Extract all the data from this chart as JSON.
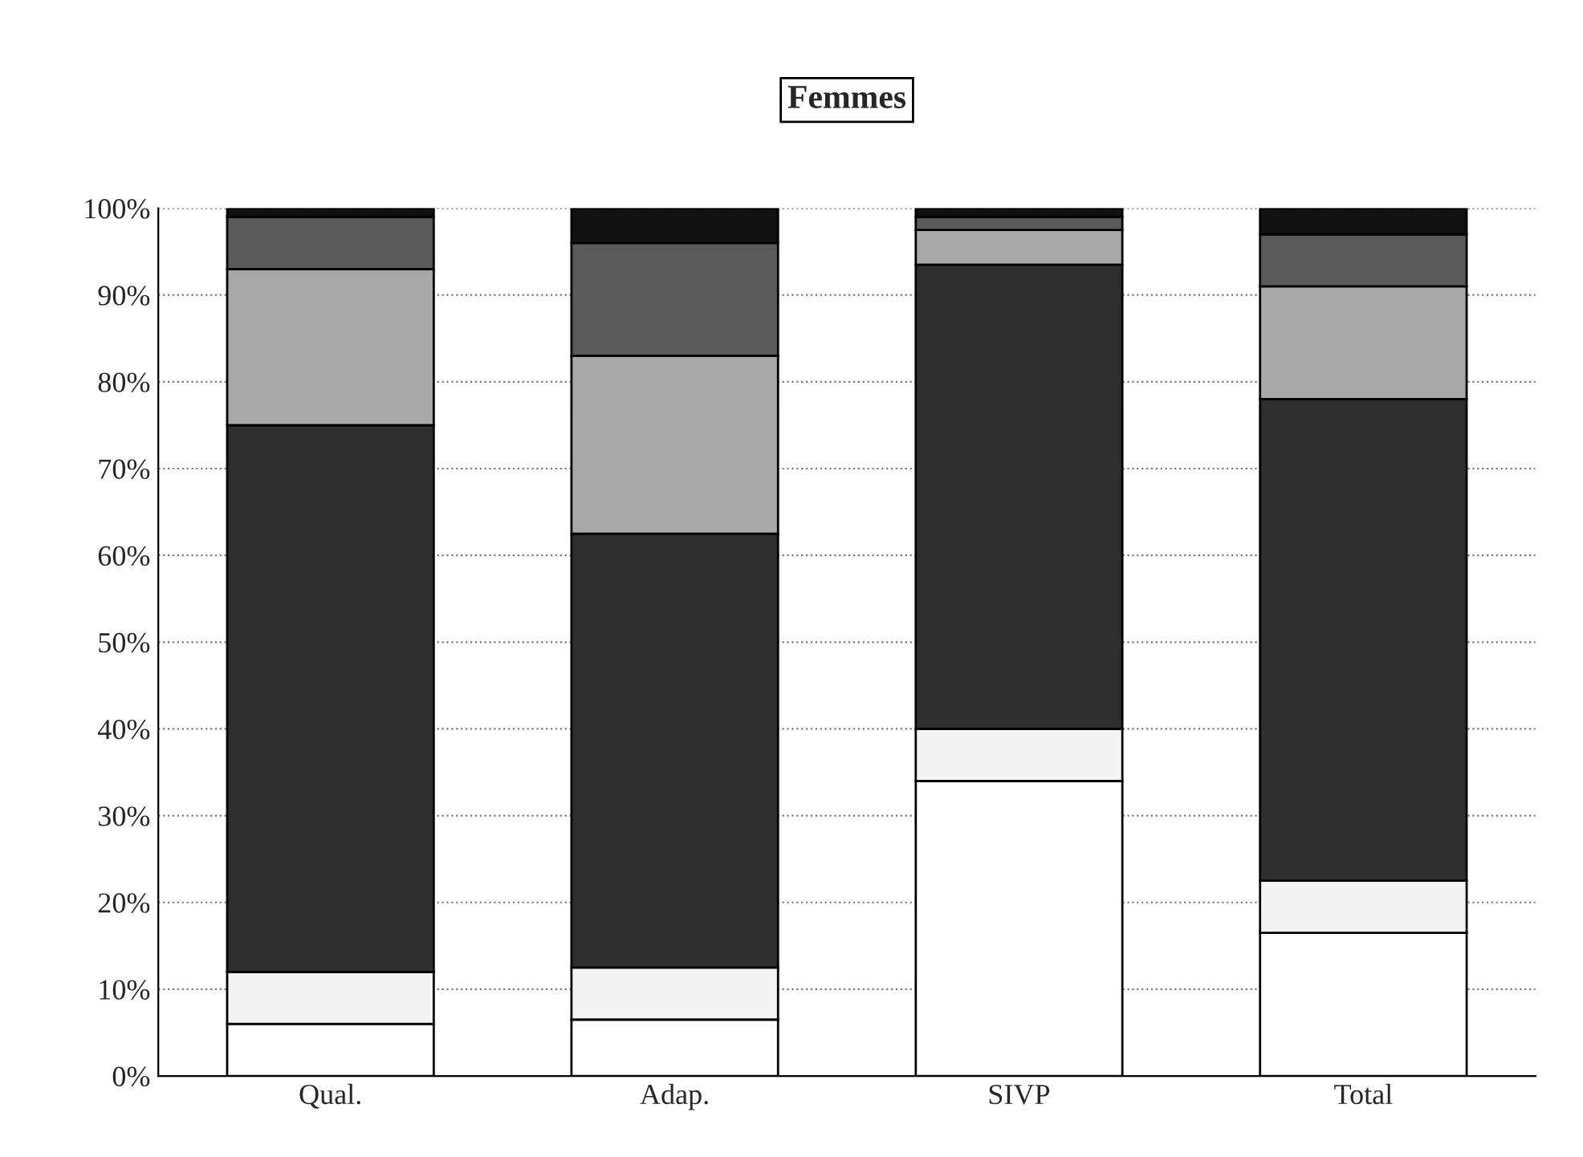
{
  "chart_data": {
    "type": "bar",
    "title": "Femmes",
    "categories": [
      "Qual.",
      "Adap.",
      "SIVP",
      "Total"
    ],
    "stacked": true,
    "series": [
      {
        "color": "#ffffff",
        "values": [
          6,
          6.5,
          34,
          16.5
        ]
      },
      {
        "color": "#f4f4f4",
        "values": [
          6,
          6,
          6,
          6
        ]
      },
      {
        "color": "#2e2e2e",
        "values": [
          63,
          50,
          53.5,
          55.5
        ]
      },
      {
        "color": "#a8a8a8",
        "values": [
          18,
          20.5,
          4,
          13
        ]
      },
      {
        "color": "#5a5a5a",
        "values": [
          6,
          13,
          1.5,
          6
        ]
      },
      {
        "color": "#111111",
        "values": [
          1,
          4,
          1,
          3
        ]
      }
    ],
    "ylim": [
      0,
      100
    ],
    "yticks": [
      {
        "value": 0,
        "label": "0%"
      },
      {
        "value": 10,
        "label": "10%"
      },
      {
        "value": 20,
        "label": "20%"
      },
      {
        "value": 30,
        "label": "30%"
      },
      {
        "value": 40,
        "label": "40%"
      },
      {
        "value": 50,
        "label": "50%"
      },
      {
        "value": 60,
        "label": "60%"
      },
      {
        "value": 70,
        "label": "70%"
      },
      {
        "value": 80,
        "label": "80%"
      },
      {
        "value": 90,
        "label": "90%"
      },
      {
        "value": 100,
        "label": "100%"
      }
    ],
    "grid": "y",
    "legend": false
  }
}
